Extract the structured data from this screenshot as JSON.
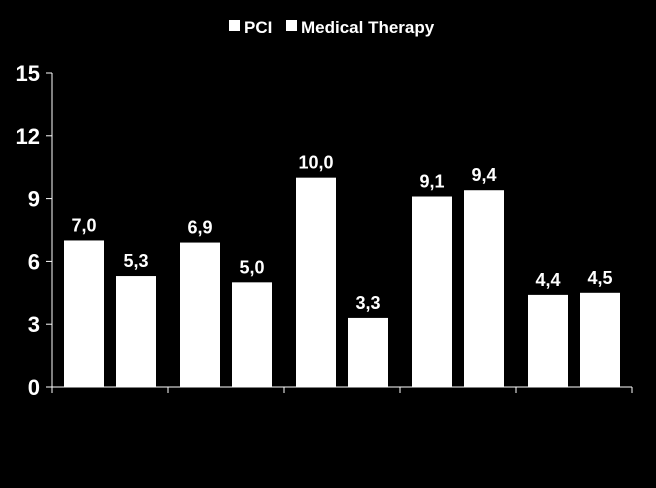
{
  "colors": {
    "background": "#000000",
    "foreground": "#ffffff"
  },
  "chart_data": {
    "type": "bar",
    "title": "",
    "xlabel": "",
    "ylabel": "",
    "ylim": [
      0,
      15
    ],
    "yticks": [
      "0",
      "3",
      "6",
      "9",
      "12",
      "15"
    ],
    "grid": false,
    "legend_position": "top-center",
    "categories": [
      "",
      "",
      "",
      "",
      ""
    ],
    "series": [
      {
        "name": "PCI",
        "values": [
          7.0,
          6.9,
          10.0,
          9.1,
          4.4
        ],
        "labels": [
          "7,0",
          "6,9",
          "10,0",
          "9,1",
          "4,4"
        ]
      },
      {
        "name": "Medical Therapy",
        "values": [
          5.3,
          5.0,
          3.3,
          9.4,
          4.5
        ],
        "labels": [
          "5,3",
          "5,0",
          "3,3",
          "9,4",
          "4,5"
        ]
      }
    ]
  }
}
